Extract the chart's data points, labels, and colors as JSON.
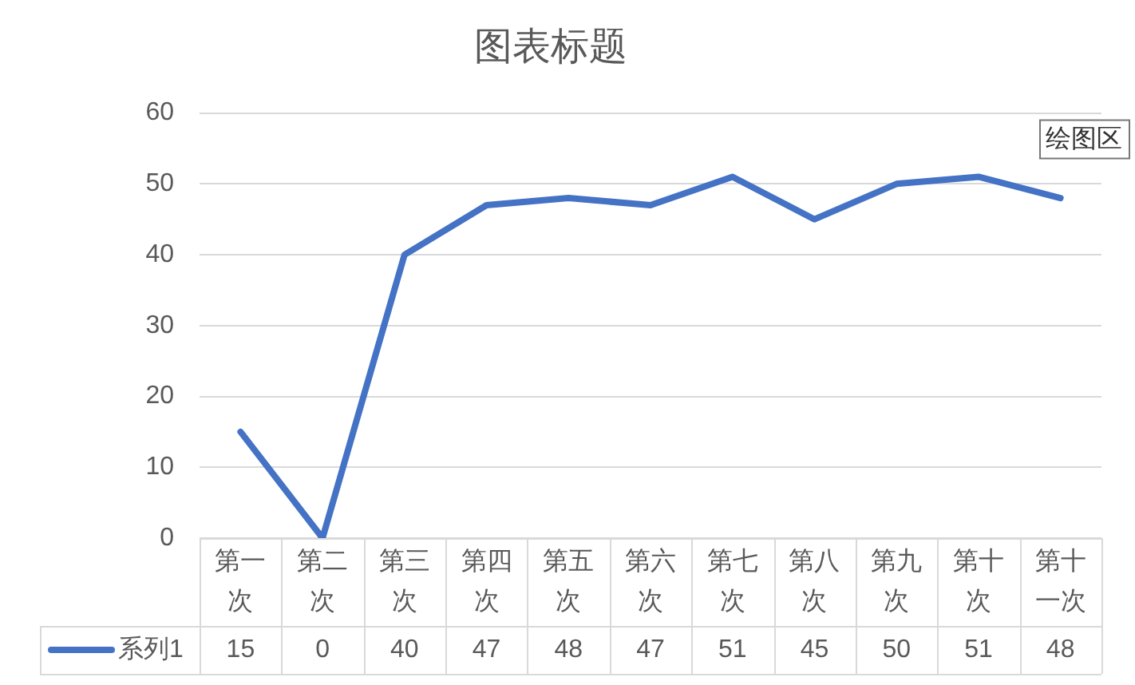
{
  "chart_data": {
    "type": "line",
    "title": "图表标题",
    "categories": [
      "第一次",
      "第二次",
      "第三次",
      "第四次",
      "第五次",
      "第六次",
      "第七次",
      "第八次",
      "第九次",
      "第十次",
      "第十一次"
    ],
    "series": [
      {
        "name": "系列1",
        "color": "#4472c4",
        "values": [
          15,
          0,
          40,
          47,
          48,
          47,
          51,
          45,
          50,
          51,
          48
        ]
      }
    ],
    "ylim": [
      0,
      60
    ],
    "yticks": [
      0,
      10,
      20,
      30,
      40,
      50,
      60
    ],
    "grid": "y",
    "legend": "bottom",
    "data_labels": true,
    "marker": "none",
    "line_style": "solid",
    "annotations": [
      "绘图区"
    ]
  }
}
